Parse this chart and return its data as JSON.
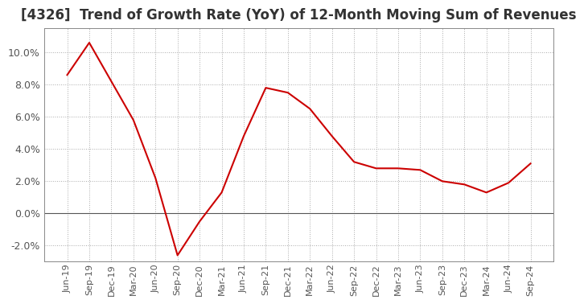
{
  "title": "[4326]  Trend of Growth Rate (YoY) of 12-Month Moving Sum of Revenues",
  "title_fontsize": 12,
  "line_color": "#cc0000",
  "background_color": "#ffffff",
  "grid_color": "#aaaaaa",
  "zero_line_color": "#555555",
  "ylim": [
    -0.03,
    0.115
  ],
  "yticks": [
    -0.02,
    0.0,
    0.02,
    0.04,
    0.06,
    0.08,
    0.1
  ],
  "x_labels": [
    "Jun-19",
    "Sep-19",
    "Dec-19",
    "Mar-20",
    "Jun-20",
    "Sep-20",
    "Dec-20",
    "Mar-21",
    "Jun-21",
    "Sep-21",
    "Dec-21",
    "Mar-22",
    "Jun-22",
    "Sep-22",
    "Dec-22",
    "Mar-23",
    "Jun-23",
    "Sep-23",
    "Dec-23",
    "Mar-24",
    "Jun-24",
    "Sep-24"
  ],
  "y_values": [
    0.086,
    0.106,
    0.082,
    0.058,
    0.022,
    -0.026,
    -0.005,
    0.013,
    0.048,
    0.078,
    0.075,
    0.065,
    0.048,
    0.032,
    0.028,
    0.028,
    0.027,
    0.02,
    0.018,
    0.013,
    0.019,
    0.031
  ]
}
